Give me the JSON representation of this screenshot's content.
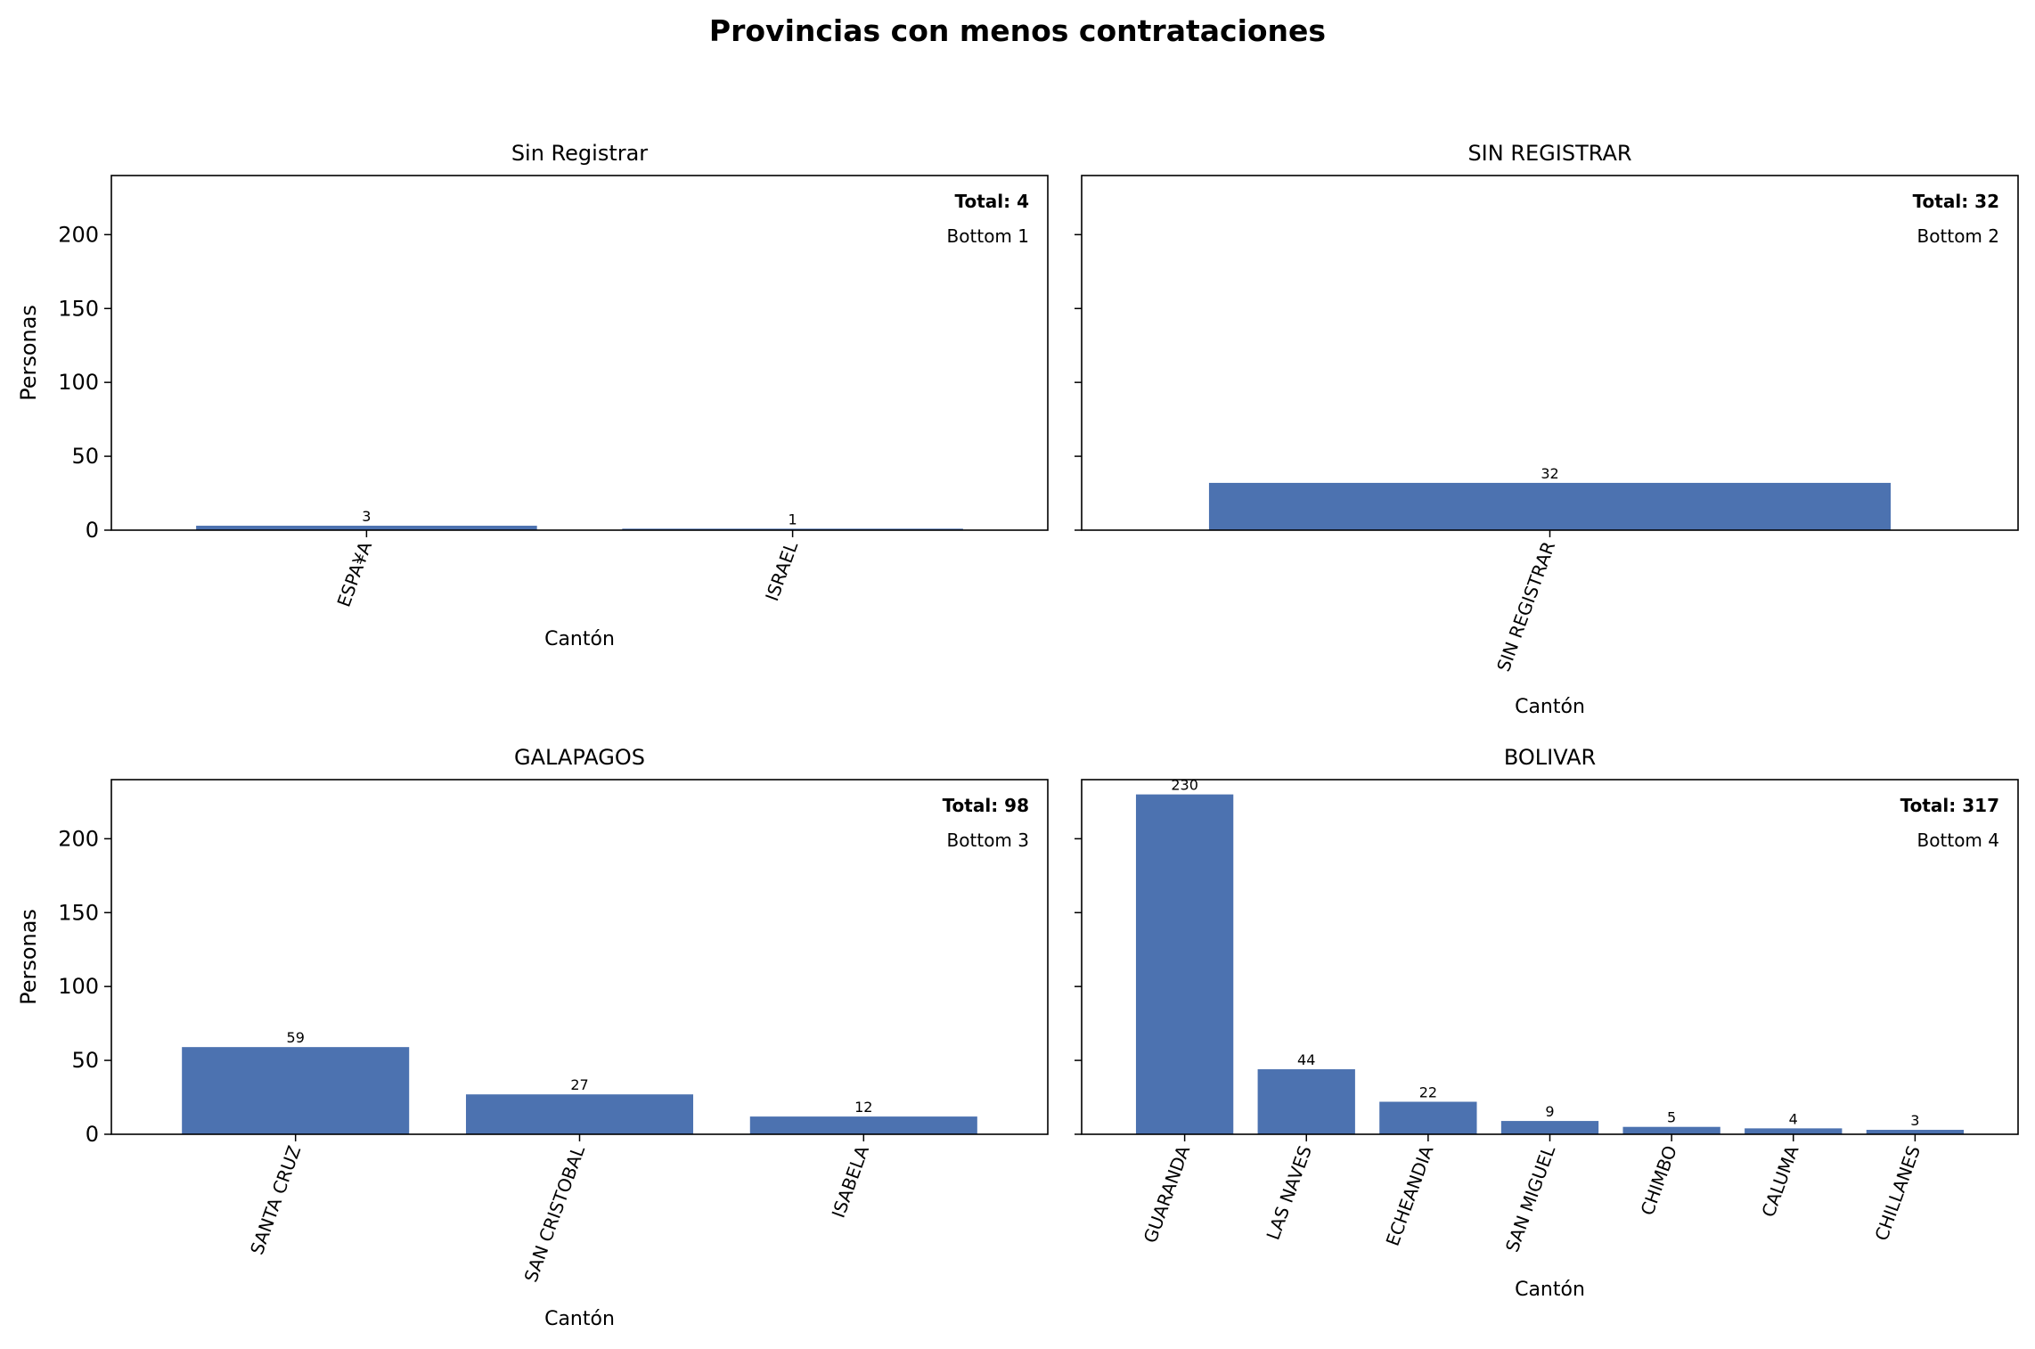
{
  "figure_title": "Provincias con menos contrataciones",
  "colors": {
    "bar": "#4c72b0",
    "axis": "#000000",
    "text": "#000000"
  },
  "chart_data": [
    {
      "type": "bar",
      "title": "Sin Registrar",
      "categories": [
        "ESPA¥A",
        "ISRAEL"
      ],
      "values": [
        3,
        1
      ],
      "total_label": "Total: 4",
      "rank_label": "Bottom 1",
      "xlabel": "Cantón",
      "ylabel": "Personas",
      "ylim": [
        0,
        240
      ],
      "yticks": [
        0,
        50,
        100,
        150,
        200
      ],
      "grid": false
    },
    {
      "type": "bar",
      "title": "SIN REGISTRAR",
      "categories": [
        "SIN REGISTRAR"
      ],
      "values": [
        32
      ],
      "total_label": "Total: 32",
      "rank_label": "Bottom 2",
      "xlabel": "Cantón",
      "ylabel": "",
      "ylim": [
        0,
        240
      ],
      "yticks": [
        0,
        50,
        100,
        150,
        200
      ],
      "grid": false
    },
    {
      "type": "bar",
      "title": "GALAPAGOS",
      "categories": [
        "SANTA CRUZ",
        "SAN CRISTOBAL",
        "ISABELA"
      ],
      "values": [
        59,
        27,
        12
      ],
      "total_label": "Total: 98",
      "rank_label": "Bottom 3",
      "xlabel": "Cantón",
      "ylabel": "Personas",
      "ylim": [
        0,
        240
      ],
      "yticks": [
        0,
        50,
        100,
        150,
        200
      ],
      "grid": false
    },
    {
      "type": "bar",
      "title": "BOLIVAR",
      "categories": [
        "GUARANDA",
        "LAS NAVES",
        "ECHEANDIA",
        "SAN MIGUEL",
        "CHIMBO",
        "CALUMA",
        "CHILLANES"
      ],
      "values": [
        230,
        44,
        22,
        9,
        5,
        4,
        3
      ],
      "total_label": "Total: 317",
      "rank_label": "Bottom 4",
      "xlabel": "Cantón",
      "ylabel": "",
      "ylim": [
        0,
        240
      ],
      "yticks": [
        0,
        50,
        100,
        150,
        200
      ],
      "grid": false
    }
  ]
}
